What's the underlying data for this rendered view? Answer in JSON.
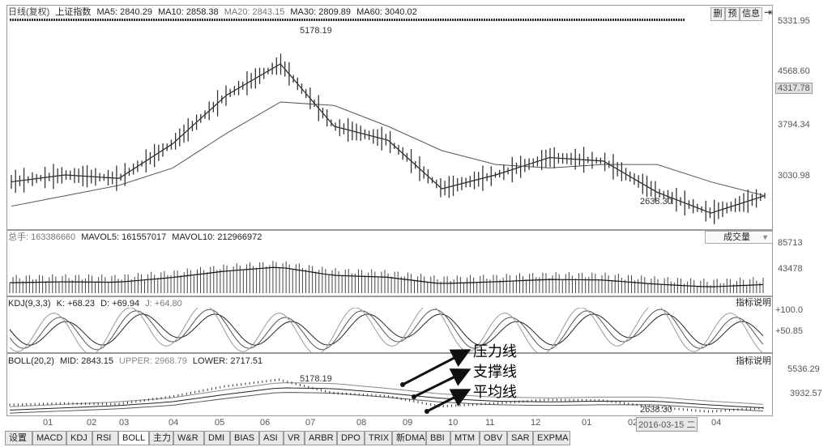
{
  "header": {
    "title": "日线(复权)",
    "index_name": "上证指数",
    "ma5": "MA5: 2840.29",
    "ma10": "MA10: 2858.38",
    "ma20": "MA20: 2843.15",
    "ma30": "MA30: 2809.89",
    "ma60": "MA60: 3040.02",
    "buttons": [
      "删",
      "预",
      "信息"
    ]
  },
  "price_axis": [
    "5331.95",
    "4568.60",
    "4317.78",
    "3794.34",
    "3030.98"
  ],
  "price_notes": {
    "high": "5178.19",
    "low": "2638.30"
  },
  "volume_panel": {
    "total_label": "总手: 163386660",
    "mavol5": "MAVOL5: 161557017",
    "mavol10": "MAVOL10: 212966972",
    "selector": "成交量",
    "axis": [
      "85713",
      "43478"
    ]
  },
  "kdj_panel": {
    "label": "KDJ(9,3,3)",
    "k": "K: +68.23",
    "d": "D: +69.94",
    "j": "J: +64.80",
    "help": "指标说明",
    "axis": [
      "+100.0",
      "+50.85"
    ]
  },
  "boll_panel": {
    "label": "BOLL(20,2)",
    "mid": "MID: 2843.15",
    "upper": "UPPER: 2968.79",
    "lower": "LOWER: 2717.51",
    "help": "指标说明",
    "axis": [
      "5536.29",
      "3932.57"
    ],
    "note_high": "5178.19",
    "note_low": "2638.30"
  },
  "annotations": [
    "压力线",
    "支撑线",
    "平均线"
  ],
  "time_axis": [
    "01",
    "02",
    "03",
    "04",
    "05",
    "06",
    "07",
    "08",
    "09",
    "10",
    "11",
    "12",
    "01",
    "02",
    "04"
  ],
  "date_box": "2016-03-15 二",
  "tabs": [
    "设置",
    "MACD",
    "KDJ",
    "RSI",
    "BOLL",
    "主力",
    "W&R",
    "DMI",
    "BIAS",
    "ASI",
    "VR",
    "ARBR",
    "DPO",
    "TRIX",
    "新DMA",
    "BBI",
    "MTM",
    "OBV",
    "SAR",
    "EXPMA"
  ],
  "active_tab": "BOLL",
  "chart_data": {
    "type": "line",
    "title": "上证指数 日线(复权)",
    "xlabel": "",
    "ylabel": "",
    "x": [
      "01",
      "02",
      "03",
      "04",
      "05",
      "06",
      "07",
      "08",
      "09",
      "10",
      "11",
      "12",
      "01",
      "02",
      "04"
    ],
    "series": [
      {
        "name": "MA5",
        "values": [
          3200,
          3300,
          3250,
          3750,
          4450,
          4900,
          4000,
          3800,
          3100,
          3300,
          3550,
          3500,
          3050,
          2750,
          3000
        ]
      },
      {
        "name": "MA60",
        "values": [
          2850,
          3000,
          3150,
          3400,
          3900,
          4350,
          4300,
          4000,
          3650,
          3450,
          3400,
          3450,
          3450,
          3200,
          3000
        ]
      }
    ],
    "ylim": [
      2600,
      5400
    ],
    "grid": false
  }
}
